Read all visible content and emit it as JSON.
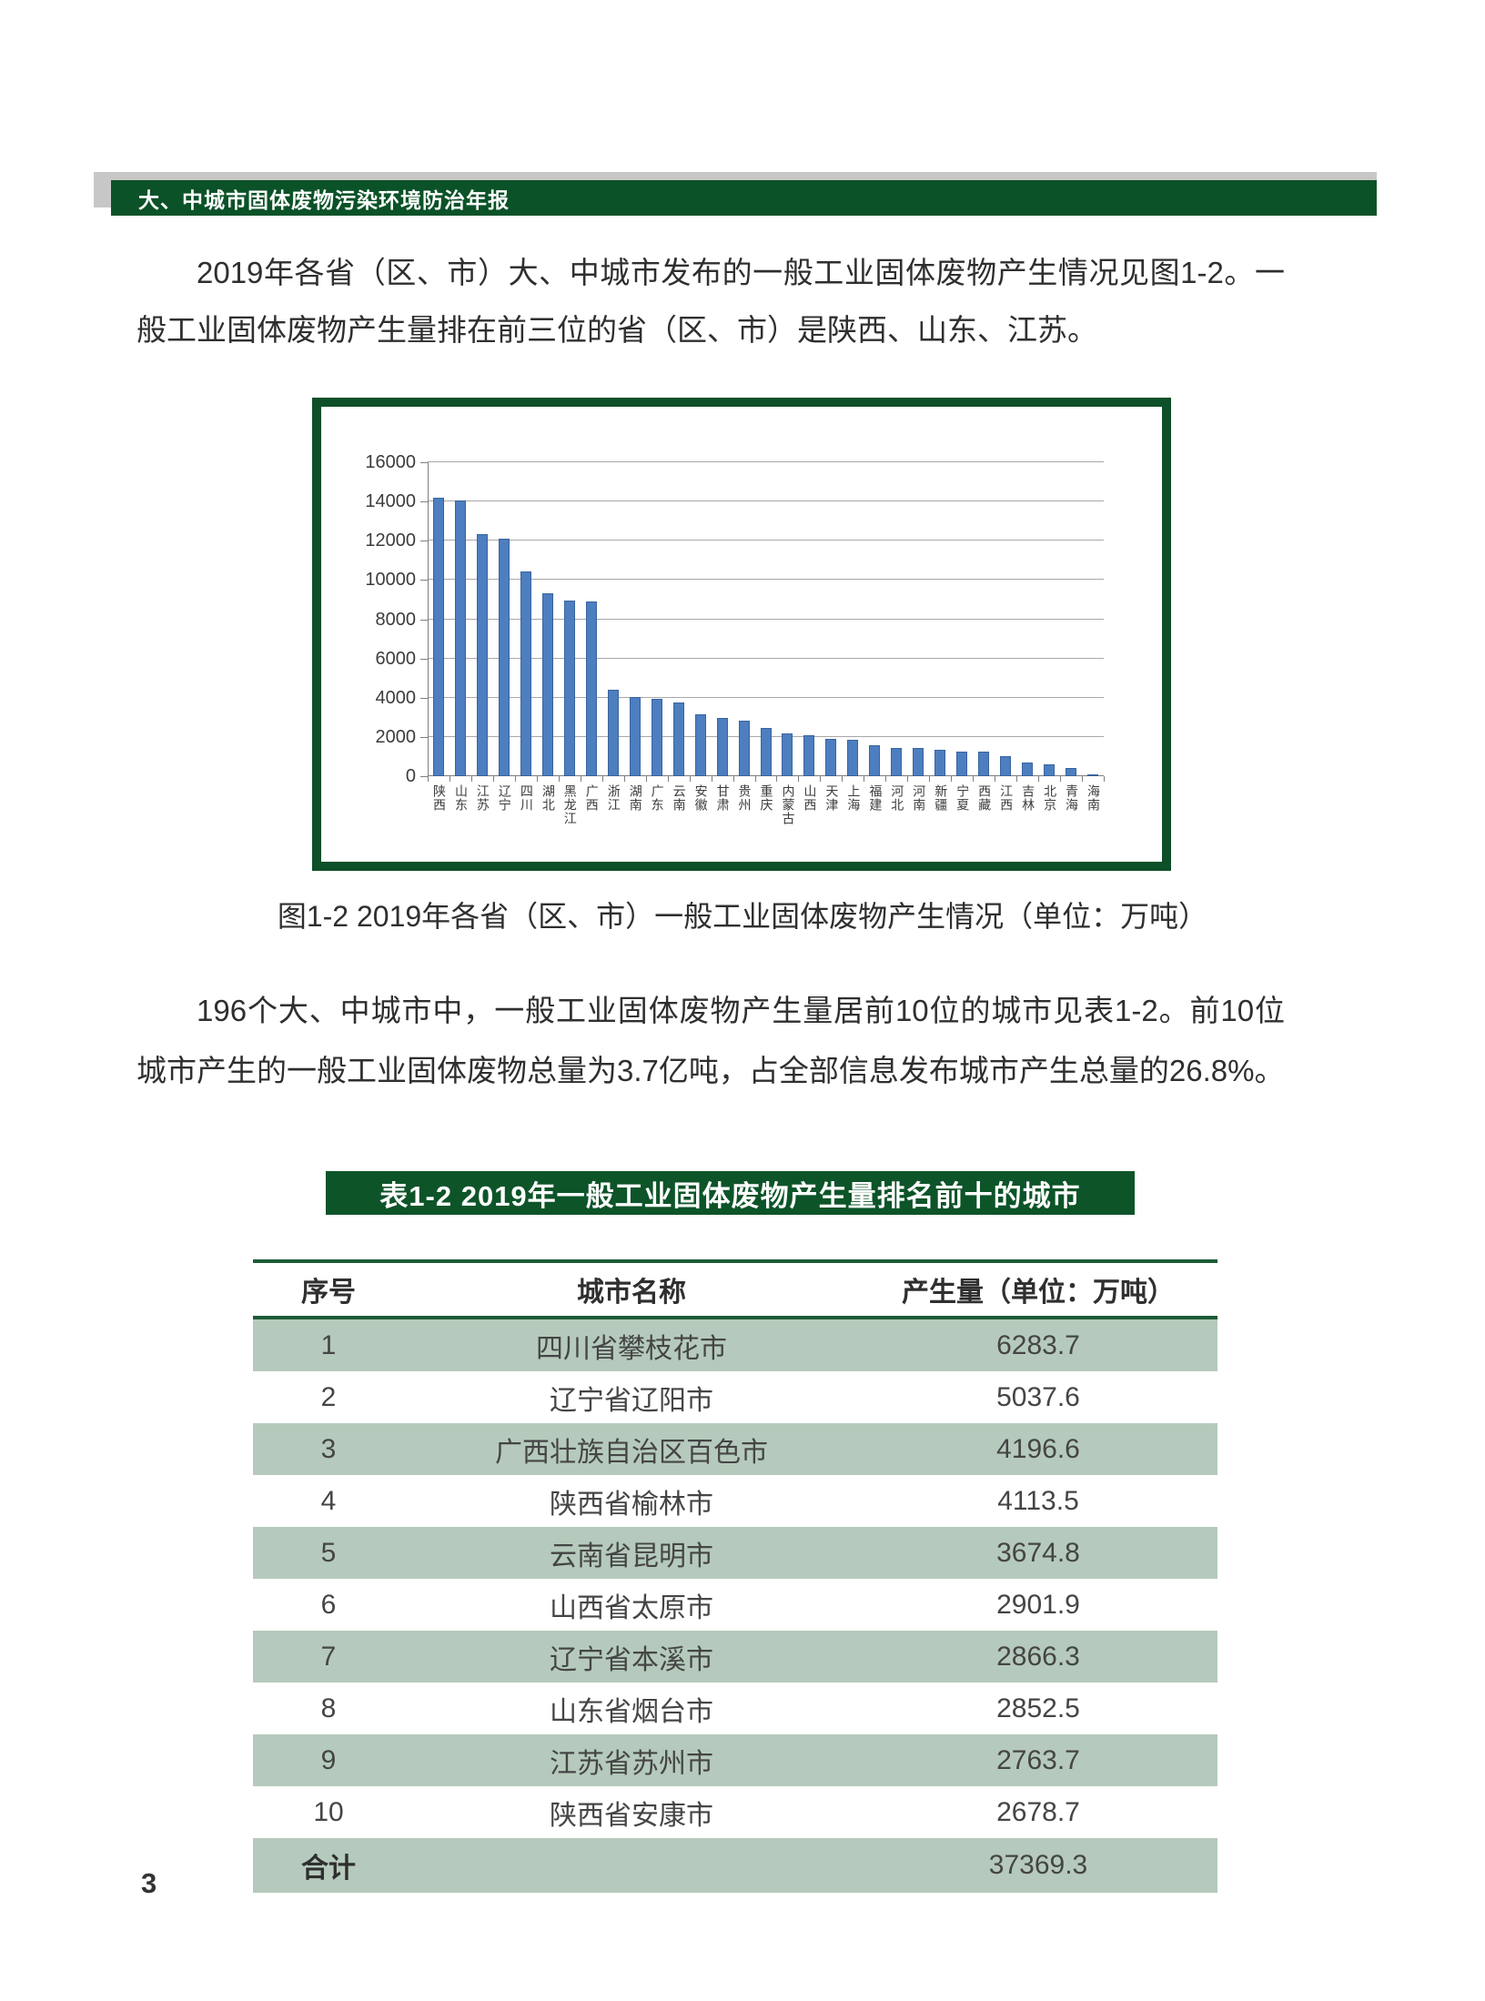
{
  "page": {
    "number": "3"
  },
  "header": {
    "title": "大、中城市固体废物污染环境防治年报"
  },
  "paragraph1": {
    "text": "2019年各省（区、市）大、中城市发布的一般工业固体废物产生情况见图1-2。一般工业固体废物产生量排在前三位的省（区、市）是陕西、山东、江苏。"
  },
  "figure": {
    "caption": "图1-2 2019年各省（区、市）一般工业固体废物产生情况（单位：万吨）"
  },
  "paragraph2": {
    "text": "196个大、中城市中，一般工业固体废物产生量居前10位的城市见表1-2。前10位城市产生的一般工业固体废物总量为3.7亿吨，占全部信息发布城市产生总量的26.8%。"
  },
  "chart_data": {
    "type": "bar",
    "title": "",
    "categories": [
      "陕西",
      "山东",
      "江苏",
      "辽宁",
      "四川",
      "湖北",
      "黑龙江",
      "广西",
      "浙江",
      "湖南",
      "广东",
      "云南",
      "安徽",
      "甘肃",
      "贵州",
      "重庆",
      "内蒙古",
      "山西",
      "天津",
      "上海",
      "福建",
      "河北",
      "河南",
      "新疆",
      "宁夏",
      "西藏",
      "江西",
      "吉林",
      "北京",
      "青海",
      "海南"
    ],
    "values": [
      14200,
      14050,
      12350,
      12100,
      10450,
      9300,
      8950,
      8900,
      4400,
      4050,
      3950,
      3750,
      3150,
      2950,
      2850,
      2450,
      2200,
      2100,
      1900,
      1850,
      1600,
      1450,
      1450,
      1350,
      1250,
      1250,
      1000,
      700,
      600,
      400,
      80
    ],
    "xlabel": "",
    "ylabel": "",
    "ylim": [
      0,
      16000
    ],
    "ytick_step": 2000,
    "grid": true,
    "legend": "none",
    "bar_color": "#4d7ebf"
  },
  "table": {
    "title": "表1-2 2019年一般工业固体废物产生量排名前十的城市",
    "columns": [
      "序号",
      "城市名称",
      "产生量（单位：万吨）"
    ],
    "rows": [
      [
        "1",
        "四川省攀枝花市",
        "6283.7"
      ],
      [
        "2",
        "辽宁省辽阳市",
        "5037.6"
      ],
      [
        "3",
        "广西壮族自治区百色市",
        "4196.6"
      ],
      [
        "4",
        "陕西省榆林市",
        "4113.5"
      ],
      [
        "5",
        "云南省昆明市",
        "3674.8"
      ],
      [
        "6",
        "山西省太原市",
        "2901.9"
      ],
      [
        "7",
        "辽宁省本溪市",
        "2866.3"
      ],
      [
        "8",
        "山东省烟台市",
        "2852.5"
      ],
      [
        "9",
        "江苏省苏州市",
        "2763.7"
      ],
      [
        "10",
        "陕西省安康市",
        "2678.7"
      ]
    ],
    "total_row": {
      "label": "合计",
      "value": "37369.3"
    }
  },
  "colors": {
    "header_green": "#0b5228",
    "banner_green": "#0d5429",
    "chart_border_green": "#0d4f28",
    "table_rule_green": "#1c5c35",
    "table_row_green": "#b5cabc",
    "bar_blue": "#4d7ebf"
  }
}
